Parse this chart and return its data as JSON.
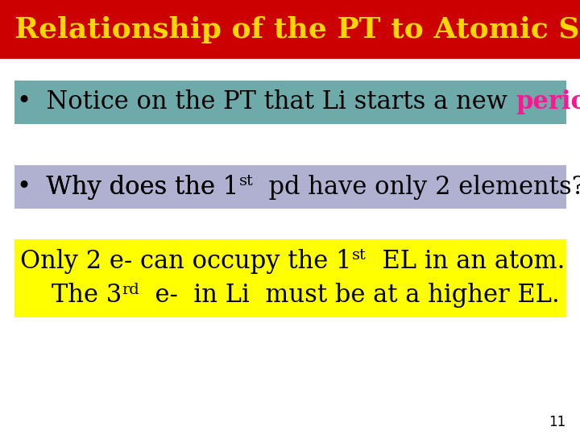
{
  "title": "Relationship of the PT to Atomic Structure",
  "title_color": "#FFD700",
  "title_bg_color": "#CC0000",
  "bg_color": "#FFFFFF",
  "bullet1_normal": "  Notice on the PT that Li starts a new ",
  "bullet1_colored": "period",
  "bullet1_end": ".",
  "bullet1_color": "#FF1493",
  "bullet1_bg": "#6FAAAA",
  "bullet2_bg": "#B0B0D0",
  "bullet2_pre": "  Why does the 1",
  "bullet2_sup": "st",
  "bullet2_post": "  pd have only 2 elements?",
  "yellow_bg": "#FFFF00",
  "y1_pre": "Only 2 e- can occupy the 1",
  "y1_sup": "st",
  "y1_post": "  EL in an atom.",
  "y2_pre": "    The 3",
  "y2_sup": "rd",
  "y2_post": "  e-  in Li  must be at a higher EL.",
  "page_number": "11",
  "text_color": "#000000",
  "title_fontsize": 26,
  "body_fontsize": 22,
  "sup_fontsize": 14
}
